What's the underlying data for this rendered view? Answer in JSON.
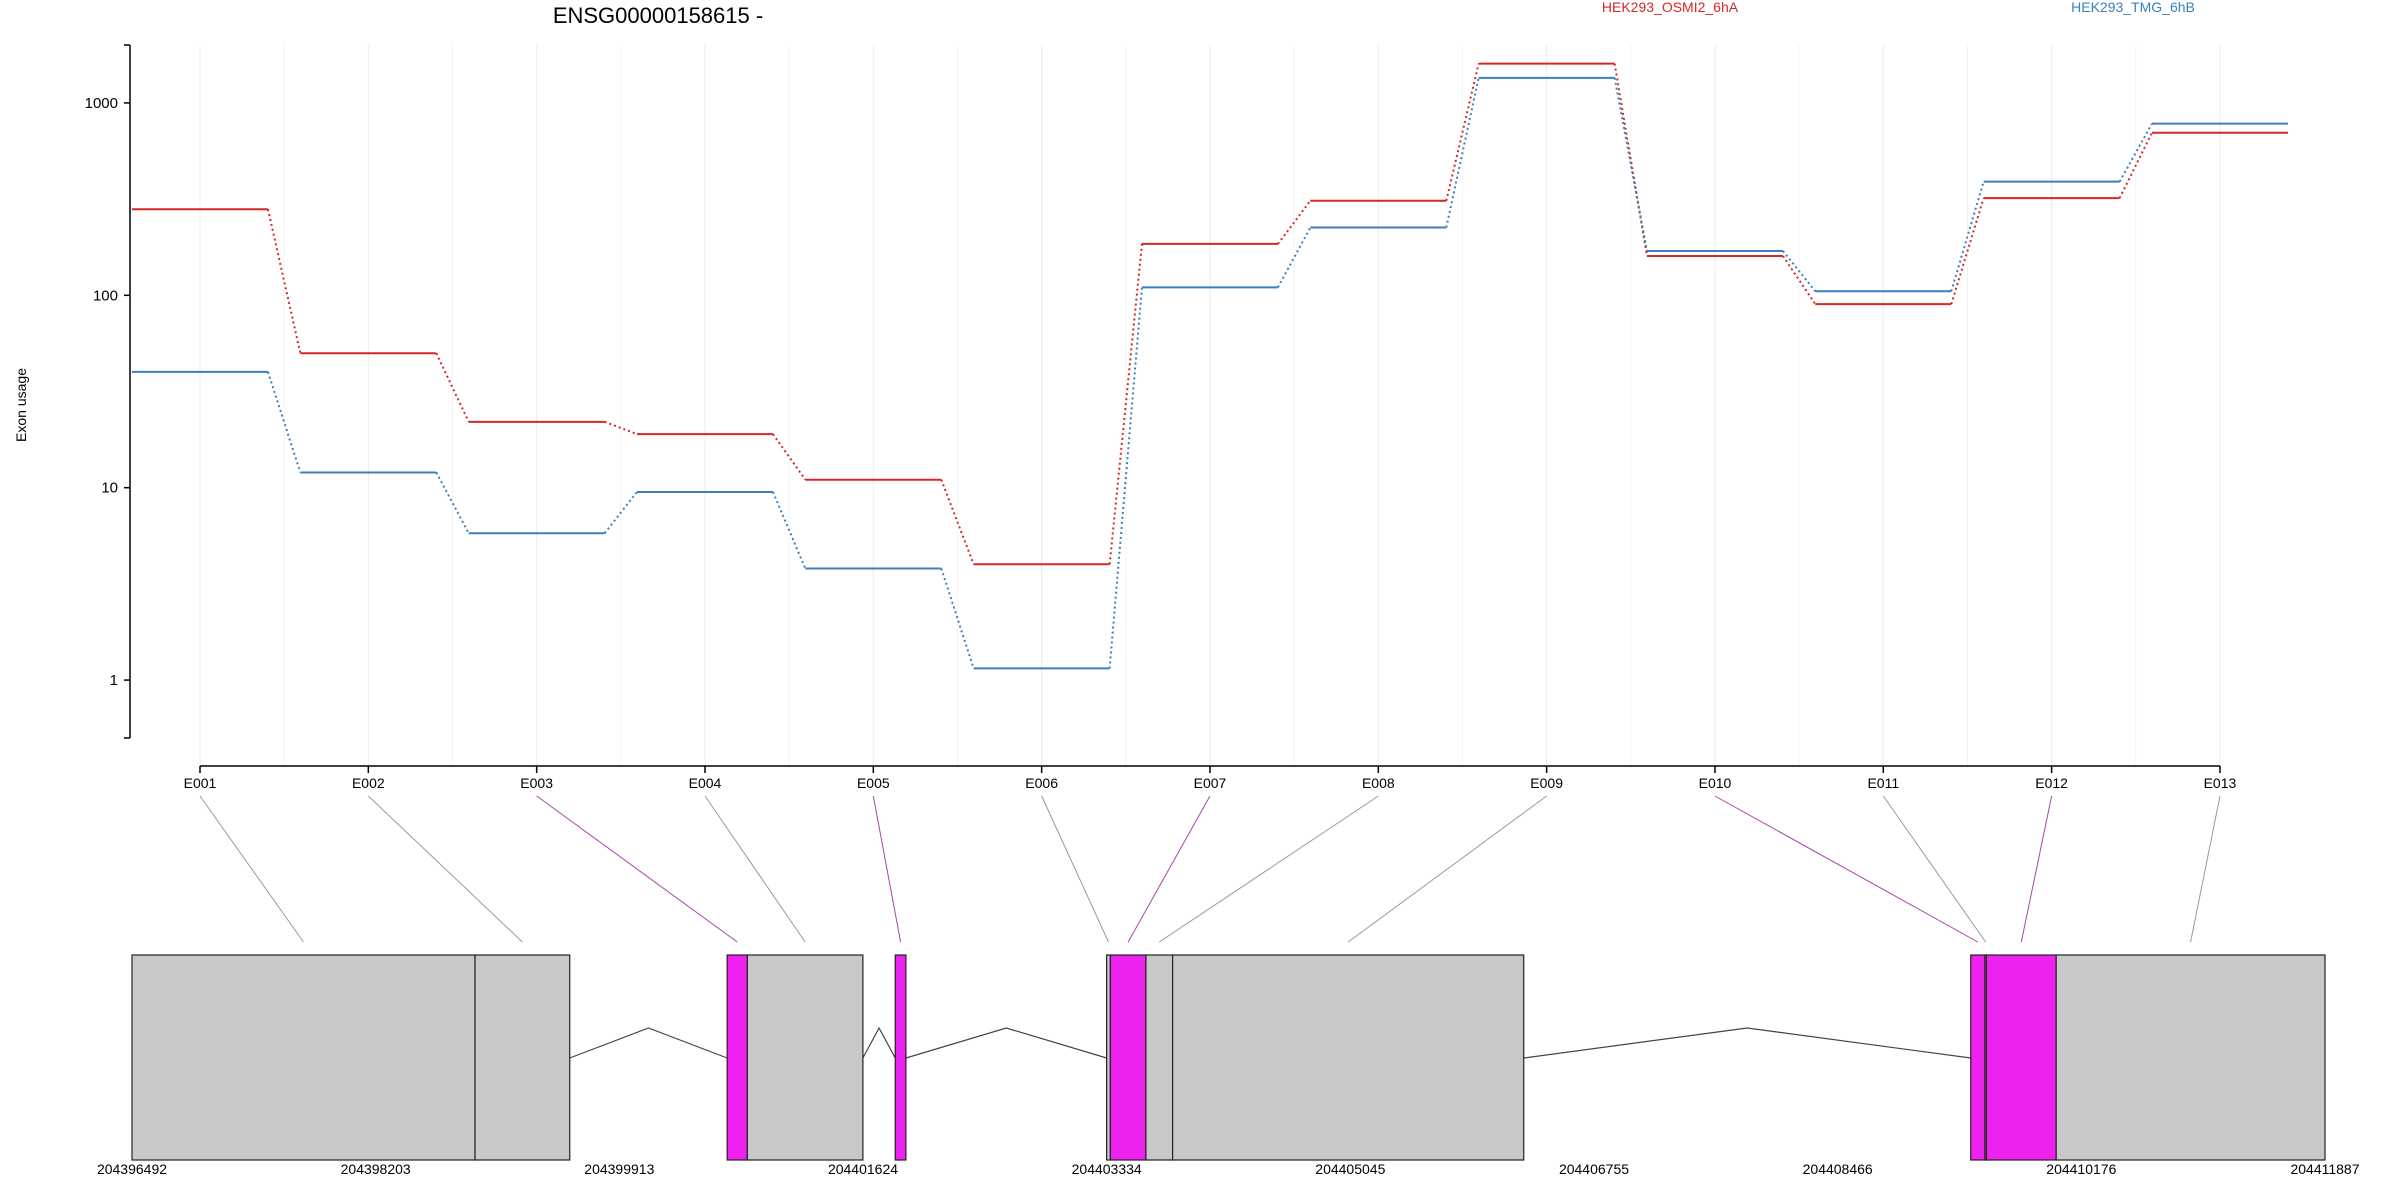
{
  "chart_data": {
    "type": "line",
    "title": "ENSG00000158615 -",
    "ylabel": "Exon usage",
    "xlabel": "",
    "y_scale": "log",
    "ylim": [
      0.5,
      2000
    ],
    "y_ticks": [
      1,
      10,
      100,
      1000
    ],
    "y_tick_labels": [
      "1",
      "10",
      "100",
      "1000"
    ],
    "grid": "vertical",
    "legend_position": "top",
    "categories": [
      "E001",
      "E002",
      "E003",
      "E004",
      "E005",
      "E006",
      "E007",
      "E008",
      "E009",
      "E010",
      "E011",
      "E012",
      "E013"
    ],
    "series": [
      {
        "name": "HEK293_OSMI2_6hA",
        "color": "#d62728",
        "values": [
          280,
          50,
          22,
          19,
          11,
          4,
          185,
          310,
          1600,
          160,
          90,
          320,
          700
        ]
      },
      {
        "name": "HEK293_TMG_6hB",
        "color": "#3a7fbf",
        "values": [
          40,
          12,
          5.8,
          9.5,
          3.8,
          1.15,
          110,
          225,
          1350,
          170,
          105,
          390,
          780
        ]
      }
    ],
    "gene_model": {
      "coordinate_labels": [
        "204396492",
        "204398203",
        "204399913",
        "204401624",
        "204403334",
        "204405045",
        "204406755",
        "204408466",
        "204410176",
        "204411887"
      ],
      "coordinate_range": [
        204396492,
        204411887
      ],
      "exon_color": "#c8c8c8",
      "highlight_color": "#ee22ee",
      "exons": [
        {
          "label": "E001",
          "start": 204396492,
          "end": 204398900,
          "highlight": false
        },
        {
          "label": "E002",
          "start": 204398900,
          "end": 204399565,
          "highlight": false
        },
        {
          "label": "E003",
          "start": 204400670,
          "end": 204400812,
          "highlight": true
        },
        {
          "label": "E004",
          "start": 204400812,
          "end": 204401623,
          "highlight": false
        },
        {
          "label": "E005",
          "start": 204401850,
          "end": 204401925,
          "highlight": true
        },
        {
          "label": "E006",
          "start": 204403334,
          "end": 204403360,
          "highlight": false
        },
        {
          "label": "E007",
          "start": 204403360,
          "end": 204403610,
          "highlight": true
        },
        {
          "label": "E008",
          "start": 204403610,
          "end": 204403797,
          "highlight": false
        },
        {
          "label": "E009",
          "start": 204403797,
          "end": 204406262,
          "highlight": false
        },
        {
          "label": "E010",
          "start": 204409400,
          "end": 204409500,
          "highlight": true
        },
        {
          "label": "E011",
          "start": 204409500,
          "end": 204409510,
          "highlight": false
        },
        {
          "label": "E012",
          "start": 204409510,
          "end": 204410000,
          "highlight": true
        },
        {
          "label": "E013",
          "start": 204410000,
          "end": 204411887,
          "highlight": false
        }
      ],
      "introns": [
        {
          "start": 204399565,
          "end": 204400670
        },
        {
          "start": 204401623,
          "end": 204401850
        },
        {
          "start": 204401925,
          "end": 204403334
        },
        {
          "start": 204406262,
          "end": 204409400
        }
      ]
    }
  }
}
